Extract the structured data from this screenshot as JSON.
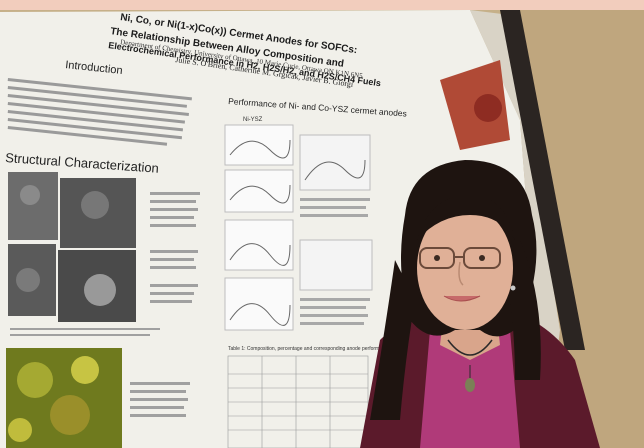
{
  "poster": {
    "title_line1": "Ni, Co, or Ni(1-x)Co(x)) Cermet Anodes for SOFCs:",
    "title_line2": "The Relationship Between Alloy Composition and",
    "title_line3": "Electrochemical Performance in H2, H2S/H2, and H2S/CH4 Fuels",
    "authors": "Julie S. O'Brien, Catherine M. Grgicak, Javier B. Giorgi",
    "affiliation": "Department of Chemistry, University of Ottawa, 10 Marie Curie, Ottawa ON K1N 6N5",
    "section_introduction": "Introduction",
    "section_structural": "Structural Characterization",
    "section_performance": "Performance of Ni- and Co-YSZ cermet anodes",
    "sub_label": "Ni-YSZ",
    "table_caption": "Table 1: Composition, percentage and corresponding anode performance"
  },
  "colors": {
    "wall": "#c9b48a",
    "poster_bg": "#f3f2ee",
    "top_band": "#f2cdbd",
    "shirt": "#b23a7a",
    "jacket": "#5e1a2c",
    "hair": "#1f1410",
    "skin": "#e2b29a"
  }
}
